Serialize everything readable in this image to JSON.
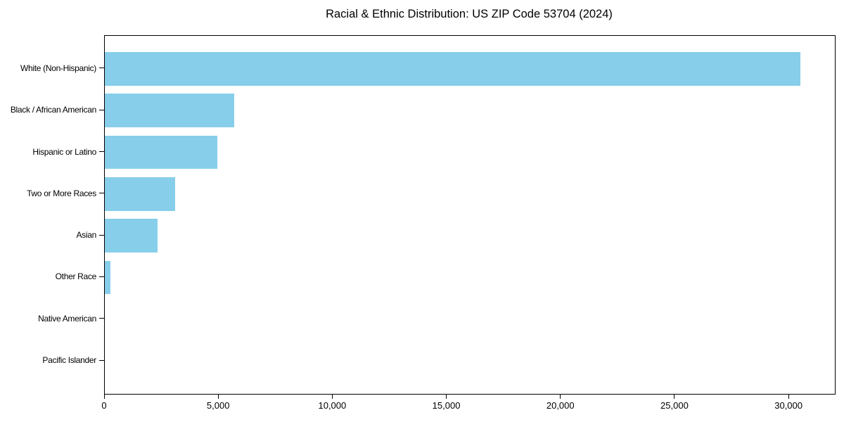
{
  "figure": {
    "background": "#ffffff",
    "text_color": "#000000",
    "spine_color": "#000000"
  },
  "chart_data": {
    "type": "bar",
    "orientation": "horizontal",
    "title": "Racial & Ethnic Distribution: US ZIP Code 53704 (2024)",
    "xlabel": "",
    "ylabel": "",
    "categories": [
      "White (Non-Hispanic)",
      "Black / African American",
      "Hispanic or Latino",
      "Two or More Races",
      "Asian",
      "Other Race",
      "Native American",
      "Pacific Islander"
    ],
    "values": [
      30500,
      5670,
      4920,
      3070,
      2300,
      260,
      0,
      0
    ],
    "xlim": [
      0,
      32000
    ],
    "xticks": [
      0,
      5000,
      10000,
      15000,
      20000,
      25000,
      30000
    ],
    "xtick_labels": [
      "0",
      "5,000",
      "10,000",
      "15,000",
      "20,000",
      "25,000",
      "30,000"
    ],
    "bar_color": "#87CEEB",
    "grid": false,
    "legend": false
  }
}
